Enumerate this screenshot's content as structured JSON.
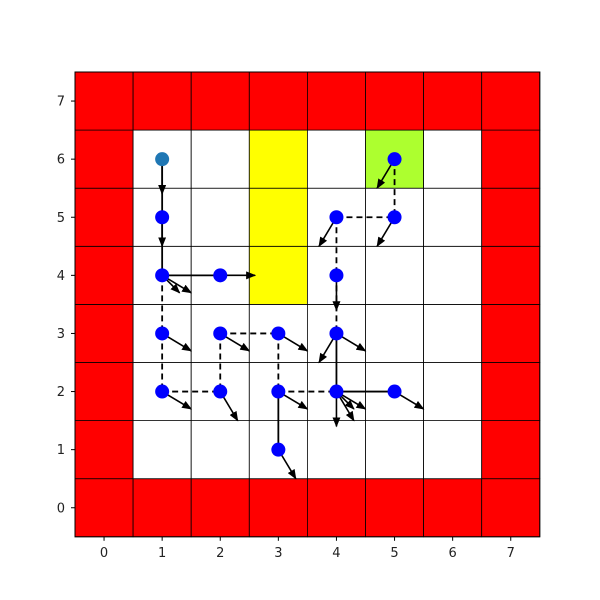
{
  "colors": {
    "wall": "#ff0000",
    "hazard": "#ffff00",
    "goal": "#adff2f",
    "empty": "#ffffff",
    "grid_line": "#000000",
    "agent": "#0000ff",
    "start": "#1f77b4",
    "arrow": "#000000"
  },
  "grid": {
    "x_ticks": [
      "0",
      "1",
      "2",
      "3",
      "4",
      "5",
      "6",
      "7"
    ],
    "y_ticks": [
      "0",
      "1",
      "2",
      "3",
      "4",
      "5",
      "6",
      "7"
    ],
    "walls": [
      [
        0,
        0
      ],
      [
        1,
        0
      ],
      [
        2,
        0
      ],
      [
        3,
        0
      ],
      [
        4,
        0
      ],
      [
        5,
        0
      ],
      [
        6,
        0
      ],
      [
        7,
        0
      ],
      [
        0,
        1
      ],
      [
        0,
        2
      ],
      [
        0,
        3
      ],
      [
        0,
        4
      ],
      [
        0,
        5
      ],
      [
        0,
        6
      ],
      [
        7,
        1
      ],
      [
        7,
        2
      ],
      [
        7,
        3
      ],
      [
        7,
        4
      ],
      [
        7,
        5
      ],
      [
        7,
        6
      ],
      [
        0,
        7
      ],
      [
        1,
        7
      ],
      [
        2,
        7
      ],
      [
        3,
        7
      ],
      [
        4,
        7
      ],
      [
        5,
        7
      ],
      [
        6,
        7
      ],
      [
        7,
        7
      ]
    ],
    "hazards": [
      [
        3,
        4
      ],
      [
        3,
        5
      ],
      [
        3,
        6
      ]
    ],
    "goals": [
      [
        5,
        6
      ]
    ]
  },
  "nodes": [
    {
      "x": 1,
      "y": 6,
      "type": "start"
    },
    {
      "x": 1,
      "y": 5,
      "type": "visited"
    },
    {
      "x": 1,
      "y": 4,
      "type": "visited"
    },
    {
      "x": 2,
      "y": 4,
      "type": "visited"
    },
    {
      "x": 1,
      "y": 3,
      "type": "visited"
    },
    {
      "x": 1,
      "y": 2,
      "type": "visited"
    },
    {
      "x": 2,
      "y": 3,
      "type": "visited"
    },
    {
      "x": 2,
      "y": 2,
      "type": "visited"
    },
    {
      "x": 3,
      "y": 3,
      "type": "visited"
    },
    {
      "x": 3,
      "y": 2,
      "type": "visited"
    },
    {
      "x": 3,
      "y": 1,
      "type": "visited"
    },
    {
      "x": 4,
      "y": 5,
      "type": "visited"
    },
    {
      "x": 4,
      "y": 4,
      "type": "visited"
    },
    {
      "x": 4,
      "y": 3,
      "type": "visited"
    },
    {
      "x": 4,
      "y": 2,
      "type": "visited"
    },
    {
      "x": 5,
      "y": 6,
      "type": "visited"
    },
    {
      "x": 5,
      "y": 5,
      "type": "visited"
    },
    {
      "x": 5,
      "y": 2,
      "type": "visited"
    }
  ],
  "edges": [
    {
      "from": [
        1,
        6
      ],
      "to": [
        1,
        5
      ],
      "style": "solid"
    },
    {
      "from": [
        1,
        5
      ],
      "to": [
        1,
        4
      ],
      "style": "solid"
    },
    {
      "from": [
        1,
        4
      ],
      "to": [
        2,
        4
      ],
      "style": "solid"
    },
    {
      "from": [
        1,
        4
      ],
      "to": [
        1,
        3
      ],
      "style": "dashed"
    },
    {
      "from": [
        1,
        3
      ],
      "to": [
        1,
        2
      ],
      "style": "dashed"
    },
    {
      "from": [
        1,
        2
      ],
      "to": [
        2,
        2
      ],
      "style": "dashed"
    },
    {
      "from": [
        2,
        3
      ],
      "to": [
        3,
        3
      ],
      "style": "dashed"
    },
    {
      "from": [
        2,
        3
      ],
      "to": [
        2,
        2
      ],
      "style": "dashed"
    },
    {
      "from": [
        3,
        3
      ],
      "to": [
        3,
        2
      ],
      "style": "dashed"
    },
    {
      "from": [
        3,
        2
      ],
      "to": [
        3,
        1
      ],
      "style": "solid"
    },
    {
      "from": [
        3,
        2
      ],
      "to": [
        4,
        2
      ],
      "style": "dashed"
    },
    {
      "from": [
        4,
        2
      ],
      "to": [
        5,
        2
      ],
      "style": "solid"
    },
    {
      "from": [
        4,
        3
      ],
      "to": [
        4,
        2
      ],
      "style": "solid"
    },
    {
      "from": [
        4,
        5
      ],
      "to": [
        4,
        4
      ],
      "style": "dashed"
    },
    {
      "from": [
        4,
        4
      ],
      "to": [
        4,
        3
      ],
      "style": "dashed"
    },
    {
      "from": [
        4,
        5
      ],
      "to": [
        5,
        5
      ],
      "style": "dashed"
    },
    {
      "from": [
        5,
        6
      ],
      "to": [
        5,
        5
      ],
      "style": "dashed"
    }
  ],
  "arrows": [
    {
      "x": 1,
      "y": 6,
      "dx": 0,
      "dy": -0.6
    },
    {
      "x": 1,
      "y": 5,
      "dx": 0,
      "dy": -0.5
    },
    {
      "x": 1,
      "y": 4,
      "dx": 0.3,
      "dy": -0.3
    },
    {
      "x": 1,
      "y": 4,
      "dx": 0.5,
      "dy": -0.3
    },
    {
      "x": 2,
      "y": 4,
      "dx": 0.6,
      "dy": 0
    },
    {
      "x": 1,
      "y": 3,
      "dx": 0.5,
      "dy": -0.3
    },
    {
      "x": 1,
      "y": 2,
      "dx": 0.5,
      "dy": -0.3
    },
    {
      "x": 2,
      "y": 3,
      "dx": 0.5,
      "dy": -0.3
    },
    {
      "x": 2,
      "y": 2,
      "dx": 0.3,
      "dy": -0.5
    },
    {
      "x": 3,
      "y": 3,
      "dx": 0.5,
      "dy": -0.3
    },
    {
      "x": 3,
      "y": 2,
      "dx": 0.5,
      "dy": -0.3
    },
    {
      "x": 3,
      "y": 1,
      "dx": 0.3,
      "dy": -0.5
    },
    {
      "x": 4,
      "y": 5,
      "dx": -0.3,
      "dy": -0.5
    },
    {
      "x": 4,
      "y": 4,
      "dx": 0,
      "dy": -0.6
    },
    {
      "x": 4,
      "y": 3,
      "dx": -0.3,
      "dy": -0.5
    },
    {
      "x": 4,
      "y": 3,
      "dx": 0.5,
      "dy": -0.3
    },
    {
      "x": 4,
      "y": 2,
      "dx": 0,
      "dy": -0.6
    },
    {
      "x": 4,
      "y": 2,
      "dx": 0.3,
      "dy": -0.3
    },
    {
      "x": 4,
      "y": 2,
      "dx": 0.3,
      "dy": -0.5
    },
    {
      "x": 4,
      "y": 2,
      "dx": 0.5,
      "dy": -0.3
    },
    {
      "x": 5,
      "y": 6,
      "dx": -0.3,
      "dy": -0.5
    },
    {
      "x": 5,
      "y": 5,
      "dx": -0.3,
      "dy": -0.5
    },
    {
      "x": 5,
      "y": 2,
      "dx": 0.5,
      "dy": -0.3
    }
  ]
}
